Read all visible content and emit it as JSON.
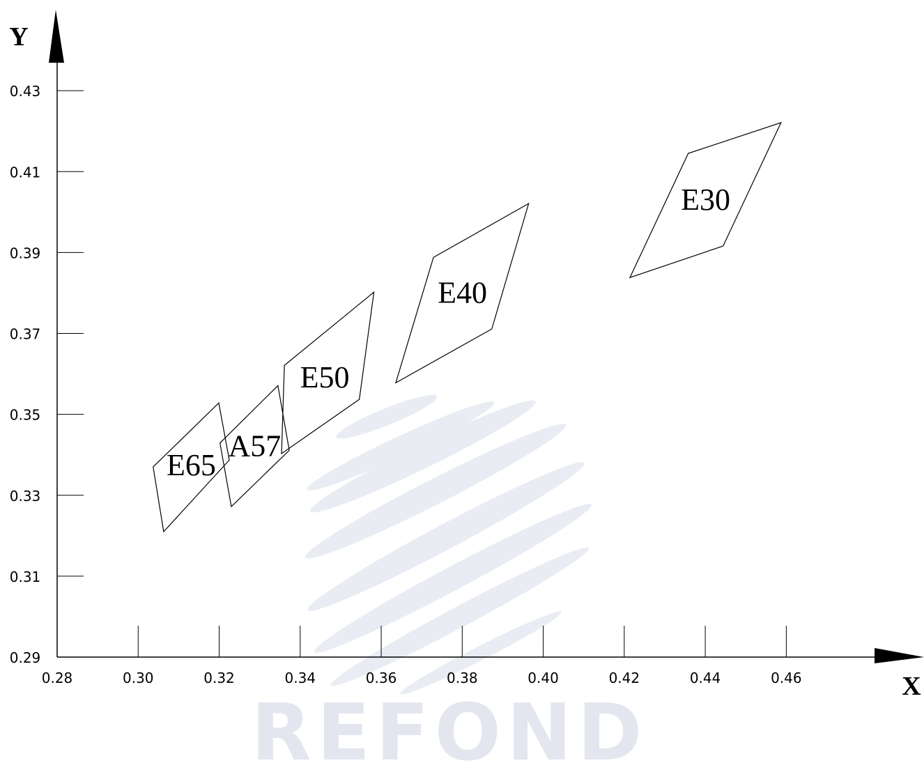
{
  "chart_data": {
    "type": "polygon",
    "x_label": "X",
    "y_label": "Y",
    "watermark": "REFOND",
    "xlim": [
      0.28,
      0.494
    ],
    "ylim": [
      0.29,
      0.45
    ],
    "xticks": [
      0.28,
      {
        "value": 0.3,
        "label": "0.30"
      },
      0.32,
      0.34,
      0.36,
      0.38,
      {
        "value": 0.4,
        "label": "0.40"
      },
      0.42,
      0.44,
      0.46
    ],
    "yticks": [
      0.29,
      0.31,
      0.33,
      0.35,
      0.37,
      0.39,
      0.41,
      0.43
    ],
    "series": [
      {
        "name": "E65",
        "color": "#000000",
        "x": [
          0.3037,
          0.3199,
          0.3225,
          0.3063
        ],
        "values": [
          0.337,
          0.3528,
          0.3387,
          0.321
        ]
      },
      {
        "name": "A57",
        "color": "#000000",
        "x": [
          0.3202,
          0.3345,
          0.3373,
          0.323
        ],
        "values": [
          0.3429,
          0.3571,
          0.3411,
          0.3272
        ]
      },
      {
        "name": "E50",
        "color": "#000000",
        "x": [
          0.3361,
          0.3582,
          0.3546,
          0.3354
        ],
        "values": [
          0.3621,
          0.3802,
          0.3537,
          0.3403
        ]
      },
      {
        "name": "E40",
        "color": "#000000",
        "x": [
          0.3729,
          0.3964,
          0.3873,
          0.3636
        ],
        "values": [
          0.3888,
          0.4021,
          0.3711,
          0.3578
        ]
      },
      {
        "name": "E30",
        "color": "#000000",
        "x": [
          0.4358,
          0.4587,
          0.4444,
          0.4214
        ],
        "values": [
          0.4145,
          0.4221,
          0.3916,
          0.3838
        ]
      }
    ]
  }
}
